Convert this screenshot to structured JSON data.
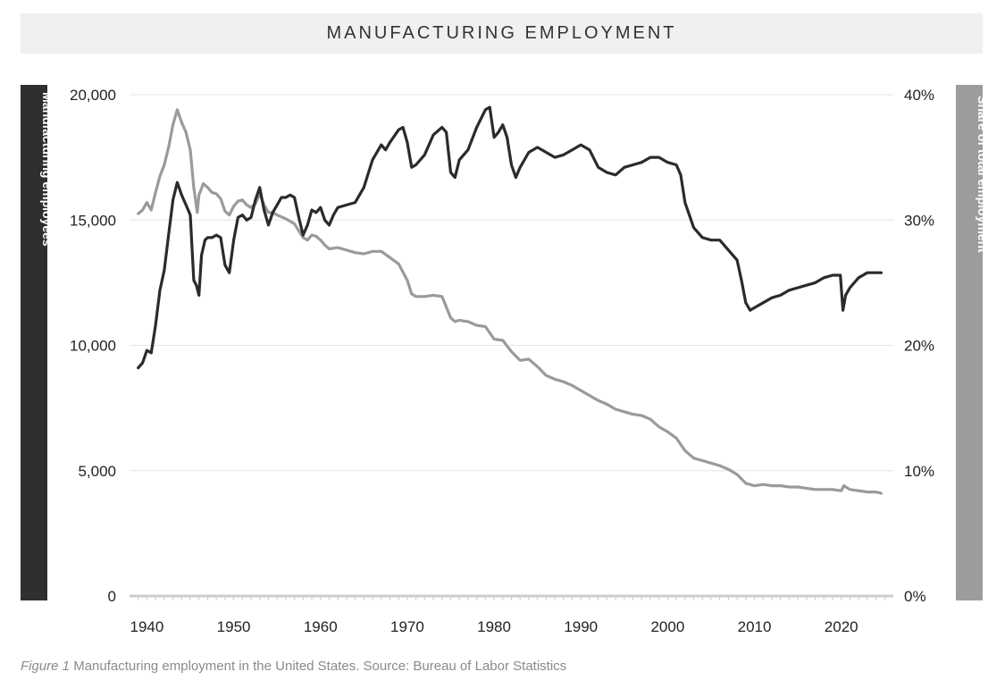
{
  "chart_data": {
    "type": "line",
    "title": "MANUFACTURING EMPLOYMENT",
    "ylabel_left": "Manufacturing employees",
    "ylabel_right": "Share of total employment",
    "ylim_left": [
      0,
      20000
    ],
    "ylim_right": [
      0,
      40
    ],
    "xlim": [
      1938,
      2026
    ],
    "x_ticks": [
      "1940",
      "1950",
      "1960",
      "1970",
      "1980",
      "1990",
      "2000",
      "2010",
      "2020"
    ],
    "y_ticks_left": [
      "20,000",
      "15,000",
      "10,000",
      "5,000",
      "0"
    ],
    "y_ticks_right": [
      "40%",
      "30%",
      "20%",
      "10%",
      "0%"
    ],
    "grid": true,
    "colors": {
      "employees": "#2b2b2b",
      "share": "#9a9a9a",
      "grid": "#e6e6e6",
      "axis": "#cccccc"
    },
    "series": [
      {
        "name": "Manufacturing employees",
        "axis": "left",
        "x": [
          1939,
          1939.5,
          1940,
          1940.5,
          1941,
          1941.5,
          1942,
          1942.5,
          1943,
          1943.5,
          1944,
          1944.5,
          1945,
          1945.4,
          1945.7,
          1946,
          1946.3,
          1946.7,
          1947,
          1947.5,
          1948,
          1948.5,
          1949,
          1949.5,
          1950,
          1950.5,
          1951,
          1951.5,
          1952,
          1952.5,
          1953,
          1953.5,
          1954,
          1954.5,
          1955,
          1955.5,
          1956,
          1956.5,
          1957,
          1957.5,
          1958,
          1958.5,
          1959,
          1959.5,
          1960,
          1960.5,
          1961,
          1961.5,
          1962,
          1963,
          1964,
          1965,
          1966,
          1967,
          1967.5,
          1968,
          1969,
          1969.5,
          1970,
          1970.5,
          1971,
          1972,
          1973,
          1974,
          1974.5,
          1975,
          1975.5,
          1976,
          1977,
          1978,
          1979,
          1979.5,
          1980,
          1980.5,
          1981,
          1981.5,
          1982,
          1982.5,
          1983,
          1984,
          1985,
          1986,
          1987,
          1988,
          1989,
          1990,
          1991,
          1992,
          1993,
          1994,
          1995,
          1996,
          1997,
          1998,
          1999,
          2000,
          2001,
          2001.5,
          2002,
          2003,
          2004,
          2005,
          2006,
          2007,
          2008,
          2008.5,
          2009,
          2009.5,
          2010,
          2011,
          2012,
          2013,
          2014,
          2015,
          2016,
          2017,
          2018,
          2019,
          2019.9,
          2020.2,
          2020.5,
          2021,
          2022,
          2023,
          2024,
          2024.6
        ],
        "values": [
          9100,
          9300,
          9800,
          9700,
          10800,
          12200,
          13000,
          14400,
          15800,
          16500,
          16000,
          15600,
          15200,
          12600,
          12400,
          12000,
          13600,
          14200,
          14300,
          14300,
          14400,
          14300,
          13200,
          12900,
          14200,
          15100,
          15200,
          15000,
          15100,
          15800,
          16300,
          15400,
          14800,
          15300,
          15600,
          15900,
          15900,
          16000,
          15900,
          15100,
          14400,
          14800,
          15400,
          15300,
          15500,
          15000,
          14800,
          15200,
          15500,
          15600,
          15700,
          16300,
          17400,
          18000,
          17800,
          18100,
          18600,
          18700,
          18100,
          17100,
          17200,
          17600,
          18400,
          18700,
          18500,
          16900,
          16700,
          17400,
          17800,
          18700,
          19400,
          19500,
          18300,
          18500,
          18800,
          18300,
          17200,
          16700,
          17100,
          17700,
          17900,
          17700,
          17500,
          17600,
          17800,
          18000,
          17800,
          17100,
          16900,
          16800,
          17100,
          17200,
          17300,
          17500,
          17500,
          17300,
          17200,
          16800,
          15700,
          14700,
          14300,
          14200,
          14200,
          13800,
          13400,
          12600,
          11700,
          11400,
          11500,
          11700,
          11900,
          12000,
          12200,
          12300,
          12400,
          12500,
          12700,
          12800,
          12800,
          11400,
          12000,
          12300,
          12700,
          12900,
          12900,
          12900
        ]
      },
      {
        "name": "Share of total employment",
        "axis": "right",
        "x": [
          1939,
          1939.5,
          1940,
          1940.5,
          1941,
          1941.5,
          1942,
          1942.5,
          1943,
          1943.5,
          1944,
          1944.5,
          1945,
          1945.4,
          1945.8,
          1946,
          1946.5,
          1947,
          1947.5,
          1948,
          1948.5,
          1949,
          1949.5,
          1950,
          1950.5,
          1951,
          1951.5,
          1952,
          1952.5,
          1953,
          1953.5,
          1954,
          1954.5,
          1955,
          1956,
          1957,
          1958,
          1958.5,
          1959,
          1959.5,
          1960,
          1960.5,
          1961,
          1962,
          1963,
          1964,
          1965,
          1966,
          1967,
          1968,
          1969,
          1970,
          1970.5,
          1971,
          1972,
          1973,
          1974,
          1975,
          1975.5,
          1976,
          1977,
          1978,
          1979,
          1980,
          1981,
          1982,
          1983,
          1984,
          1985,
          1986,
          1987,
          1988,
          1989,
          1990,
          1991,
          1992,
          1993,
          1994,
          1995,
          1996,
          1997,
          1998,
          1999,
          2000,
          2001,
          2002,
          2003,
          2004,
          2005,
          2006,
          2007,
          2008,
          2009,
          2010,
          2011,
          2012,
          2013,
          2014,
          2015,
          2016,
          2017,
          2018,
          2019,
          2020,
          2020.3,
          2021,
          2022,
          2023,
          2024,
          2024.6
        ],
        "values": [
          30.5,
          30.8,
          31.4,
          30.8,
          32.2,
          33.5,
          34.4,
          35.8,
          37.6,
          38.8,
          37.8,
          37.0,
          35.6,
          32.6,
          30.6,
          32.0,
          32.9,
          32.6,
          32.2,
          32.1,
          31.7,
          30.7,
          30.4,
          31.1,
          31.5,
          31.6,
          31.2,
          31.0,
          31.3,
          32.1,
          31.2,
          30.6,
          30.6,
          30.4,
          30.1,
          29.7,
          28.6,
          28.4,
          28.8,
          28.7,
          28.4,
          28.0,
          27.7,
          27.8,
          27.6,
          27.4,
          27.3,
          27.5,
          27.5,
          27.0,
          26.5,
          25.2,
          24.1,
          23.9,
          23.9,
          24.0,
          23.9,
          22.2,
          21.9,
          22.0,
          21.9,
          21.6,
          21.5,
          20.5,
          20.4,
          19.5,
          18.8,
          18.9,
          18.3,
          17.6,
          17.3,
          17.1,
          16.8,
          16.4,
          16.0,
          15.6,
          15.3,
          14.9,
          14.7,
          14.5,
          14.4,
          14.1,
          13.5,
          13.1,
          12.6,
          11.6,
          11.0,
          10.8,
          10.6,
          10.4,
          10.1,
          9.7,
          9.0,
          8.8,
          8.9,
          8.8,
          8.8,
          8.7,
          8.7,
          8.6,
          8.5,
          8.5,
          8.5,
          8.4,
          8.8,
          8.5,
          8.4,
          8.3,
          8.3,
          8.2
        ]
      }
    ]
  },
  "caption": {
    "label": "Figure 1",
    "text": " Manufacturing employment in the United States. Source: Bureau of Labor Statistics"
  }
}
